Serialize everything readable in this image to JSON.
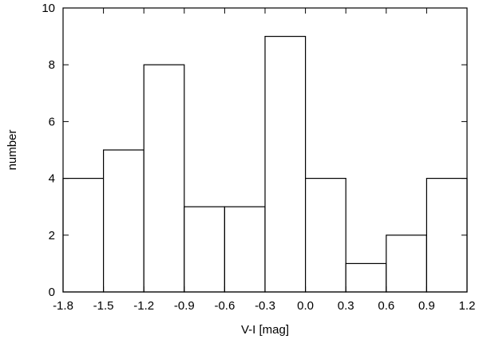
{
  "chart_data": {
    "type": "bar",
    "title": "",
    "xlabel": "V-I [mag]",
    "ylabel": "number",
    "bin_edges": [
      -1.8,
      -1.5,
      -1.2,
      -0.9,
      -0.6,
      -0.3,
      0.0,
      0.3,
      0.6,
      0.9,
      1.2
    ],
    "values": [
      4,
      5,
      8,
      3,
      3,
      9,
      4,
      1,
      2,
      4
    ],
    "xlim": [
      -1.8,
      1.2
    ],
    "ylim": [
      0,
      10
    ],
    "x_ticks": [
      "-1.8",
      "-1.5",
      "-1.2",
      "-0.9",
      "-0.6",
      "-0.3",
      "0.0",
      "0.3",
      "0.6",
      "0.9",
      "1.2"
    ],
    "y_ticks": [
      "0",
      "2",
      "4",
      "6",
      "8",
      "10"
    ],
    "grid": false,
    "legend": "none"
  }
}
